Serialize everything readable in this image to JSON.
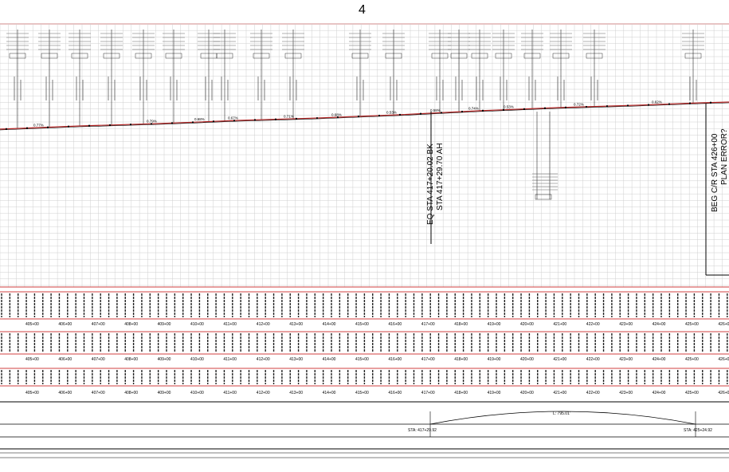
{
  "sheet": {
    "number": "4",
    "equation_line1": "EQ STA 417+20.02 BK",
    "equation_line2": "STA 417+29.70 AH",
    "beg_label": "BEG C/R STA 426+00",
    "beg_label2": "PLAN ERROR?"
  },
  "grade_labels": [
    "0.77%",
    "0.79%",
    "0.68%",
    "0.67%",
    "0.71%",
    "0.68%",
    "0.53%",
    "0.58%",
    "0.74%",
    "0.53%",
    "0.72%",
    "0.62%"
  ],
  "station_labels": [
    "405+00",
    "406+00",
    "407+00",
    "408+00",
    "409+00",
    "410+00",
    "411+00",
    "412+00",
    "413+00",
    "414+00",
    "415+00",
    "416+00",
    "417+00",
    "418+00",
    "419+00",
    "420+00",
    "421+00",
    "422+00",
    "423+00",
    "424+00",
    "425+00",
    "426+00"
  ],
  "curve": {
    "length_label": "L: 795.01'",
    "start_label": "STA: 417+29.92",
    "end_label": "STA: 425+24.92"
  }
}
